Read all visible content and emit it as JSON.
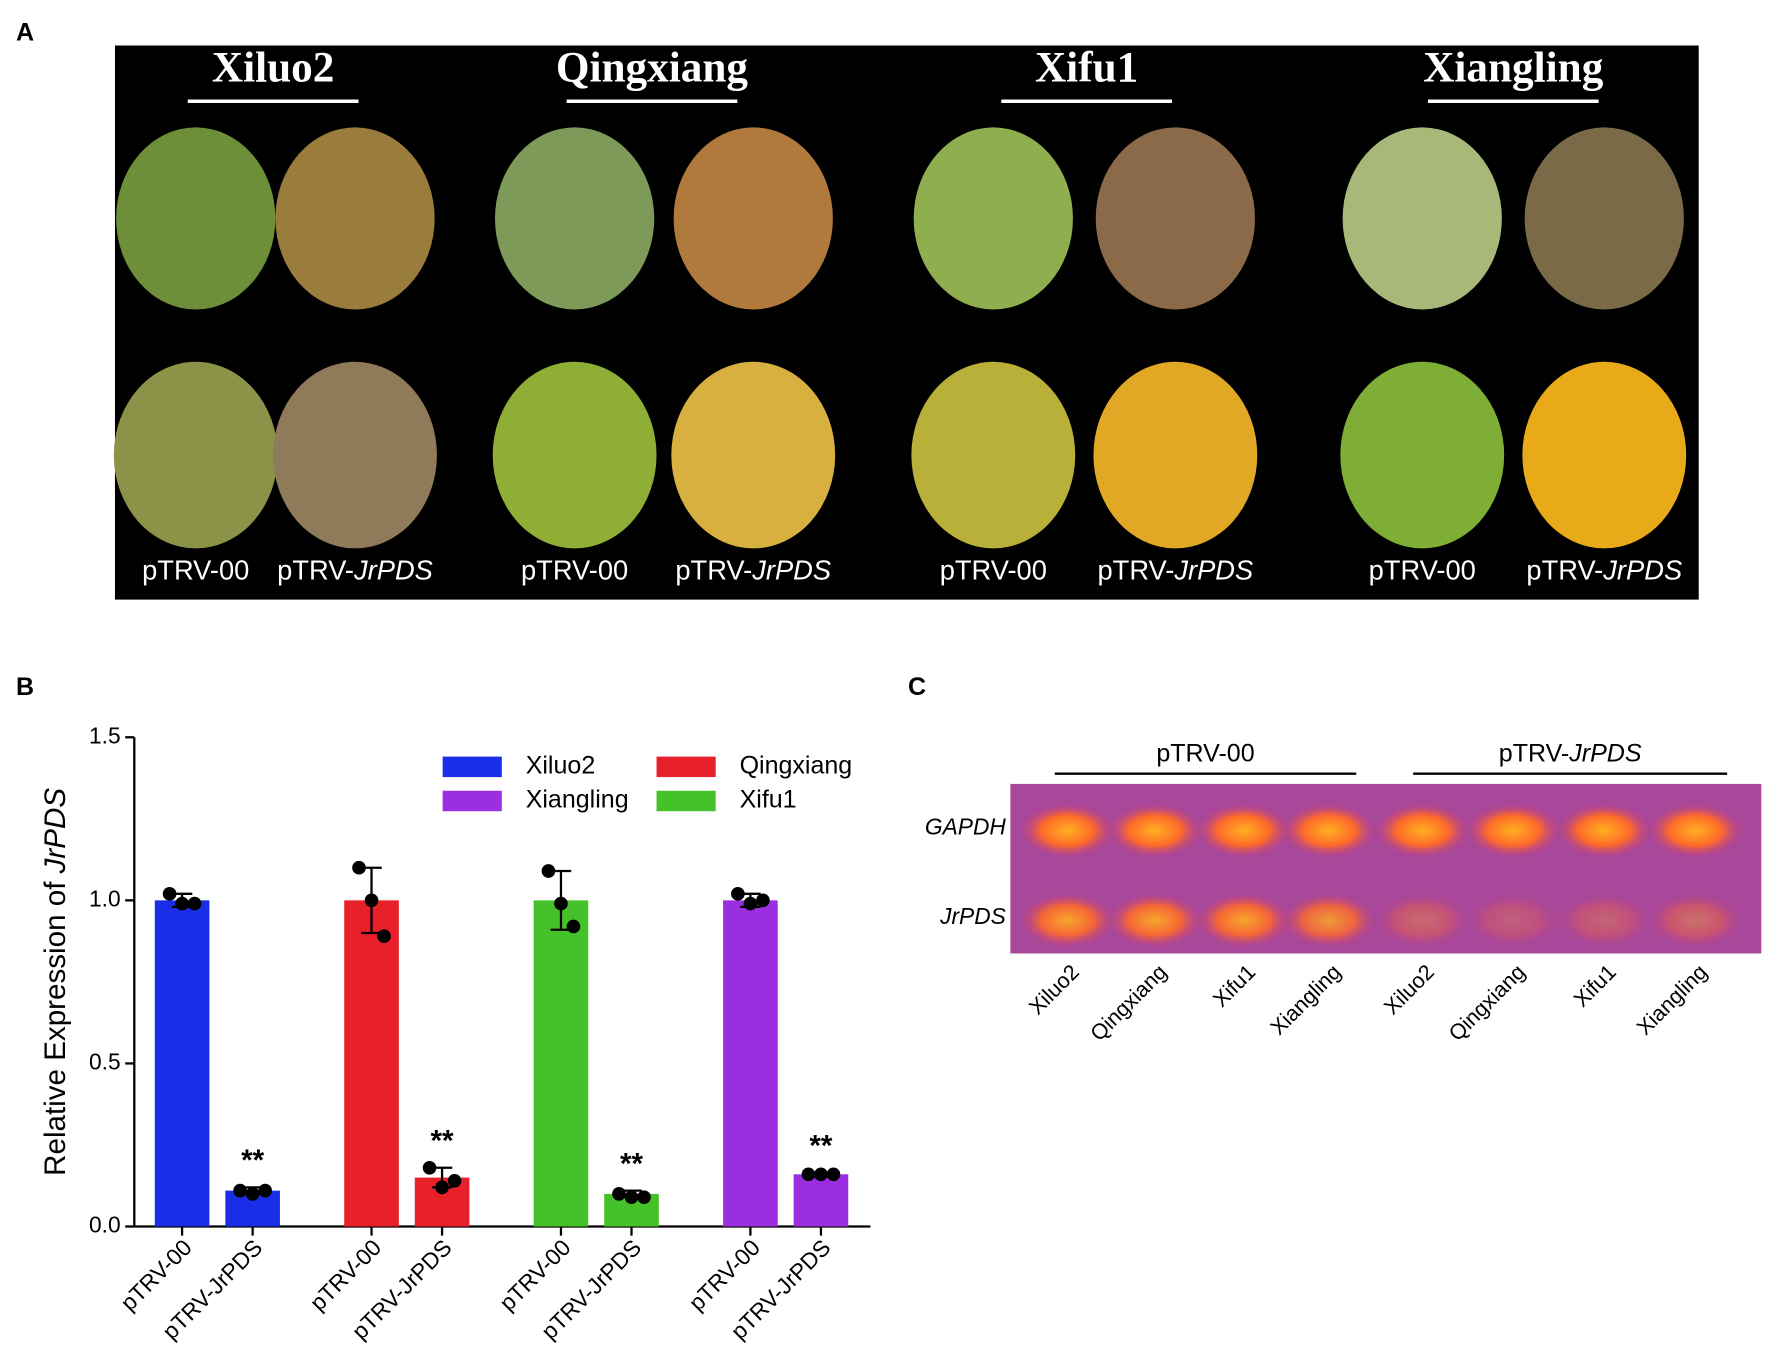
{
  "panel_a": {
    "label": "A",
    "cultivars": [
      "Xiluo2",
      "Qingxiang",
      "Xifu1",
      "Xiangling"
    ],
    "treatments": [
      {
        "text": "pTRV-00"
      },
      {
        "text": "pTRV-",
        "italic": "JrPDS"
      }
    ]
  },
  "chart_data": {
    "type": "bar",
    "label": "B",
    "ylabel": "Relative Expression of ",
    "ylabel_italic": "JrPDS",
    "categories": [
      "pTRV-00",
      "pTRV-JrPDS",
      "pTRV-00",
      "pTRV-JrPDS",
      "pTRV-00",
      "pTRV-JrPDS",
      "pTRV-00",
      "pTRV-JrPDS"
    ],
    "series": [
      {
        "name": "Xiluo2",
        "color": "#1a2ee8",
        "values": [
          1.0,
          0.11,
          null,
          null,
          null,
          null,
          null,
          null
        ],
        "errors": [
          0.02,
          0.01,
          null,
          null,
          null,
          null,
          null,
          null
        ],
        "points": [
          [
            1.02,
            0.99,
            0.99
          ],
          [
            0.11,
            0.1,
            0.11
          ],
          null,
          null,
          null,
          null,
          null,
          null
        ],
        "labels": [
          null,
          "**",
          null,
          null,
          null,
          null,
          null,
          null
        ]
      },
      {
        "name": "Qingxiang",
        "color": "#e8202a",
        "values": [
          null,
          null,
          1.0,
          0.15,
          null,
          null,
          null,
          null
        ],
        "errors": [
          null,
          null,
          0.1,
          0.03,
          null,
          null,
          null,
          null
        ],
        "points": [
          null,
          null,
          [
            1.1,
            1.0,
            0.89
          ],
          [
            0.18,
            0.12,
            0.14
          ],
          null,
          null,
          null,
          null
        ],
        "labels": [
          null,
          null,
          null,
          "**",
          null,
          null,
          null,
          null
        ]
      },
      {
        "name": "Xifu1",
        "color": "#45c22a",
        "values": [
          null,
          null,
          null,
          null,
          1.0,
          0.1,
          null,
          null
        ],
        "errors": [
          null,
          null,
          null,
          null,
          0.09,
          0.01,
          null,
          null
        ],
        "points": [
          null,
          null,
          null,
          null,
          [
            1.09,
            0.99,
            0.92
          ],
          [
            0.1,
            0.09,
            0.09
          ],
          null,
          null
        ],
        "labels": [
          null,
          null,
          null,
          null,
          null,
          "**",
          null,
          null
        ]
      },
      {
        "name": "Xiangling",
        "color": "#9b2ee0",
        "values": [
          null,
          null,
          null,
          null,
          null,
          null,
          1.0,
          0.16
        ],
        "errors": [
          null,
          null,
          null,
          null,
          null,
          null,
          0.02,
          0.005
        ],
        "points": [
          null,
          null,
          null,
          null,
          null,
          null,
          [
            1.02,
            0.99,
            1.0
          ],
          [
            0.16,
            0.16,
            0.16
          ]
        ],
        "labels": [
          null,
          null,
          null,
          null,
          null,
          null,
          null,
          "**"
        ]
      }
    ],
    "ylim": [
      0,
      1.5
    ],
    "yticks": [
      {
        "value": 0,
        "label": "0.0"
      },
      0.5,
      {
        "value": 1,
        "label": "1.0"
      },
      1.5
    ]
  },
  "panel_c": {
    "label": "C",
    "groups": [
      {
        "text": "pTRV-00"
      },
      {
        "text": "pTRV-",
        "italic": "JrPDS"
      }
    ],
    "rows": [
      "GAPDH",
      "JrPDS"
    ],
    "lanes": [
      "Xiluo2",
      "Qingxiang",
      "Xifu1",
      "Xiangling",
      "Xiluo2",
      "Qingxiang",
      "Xifu1",
      "Xiangling"
    ]
  }
}
